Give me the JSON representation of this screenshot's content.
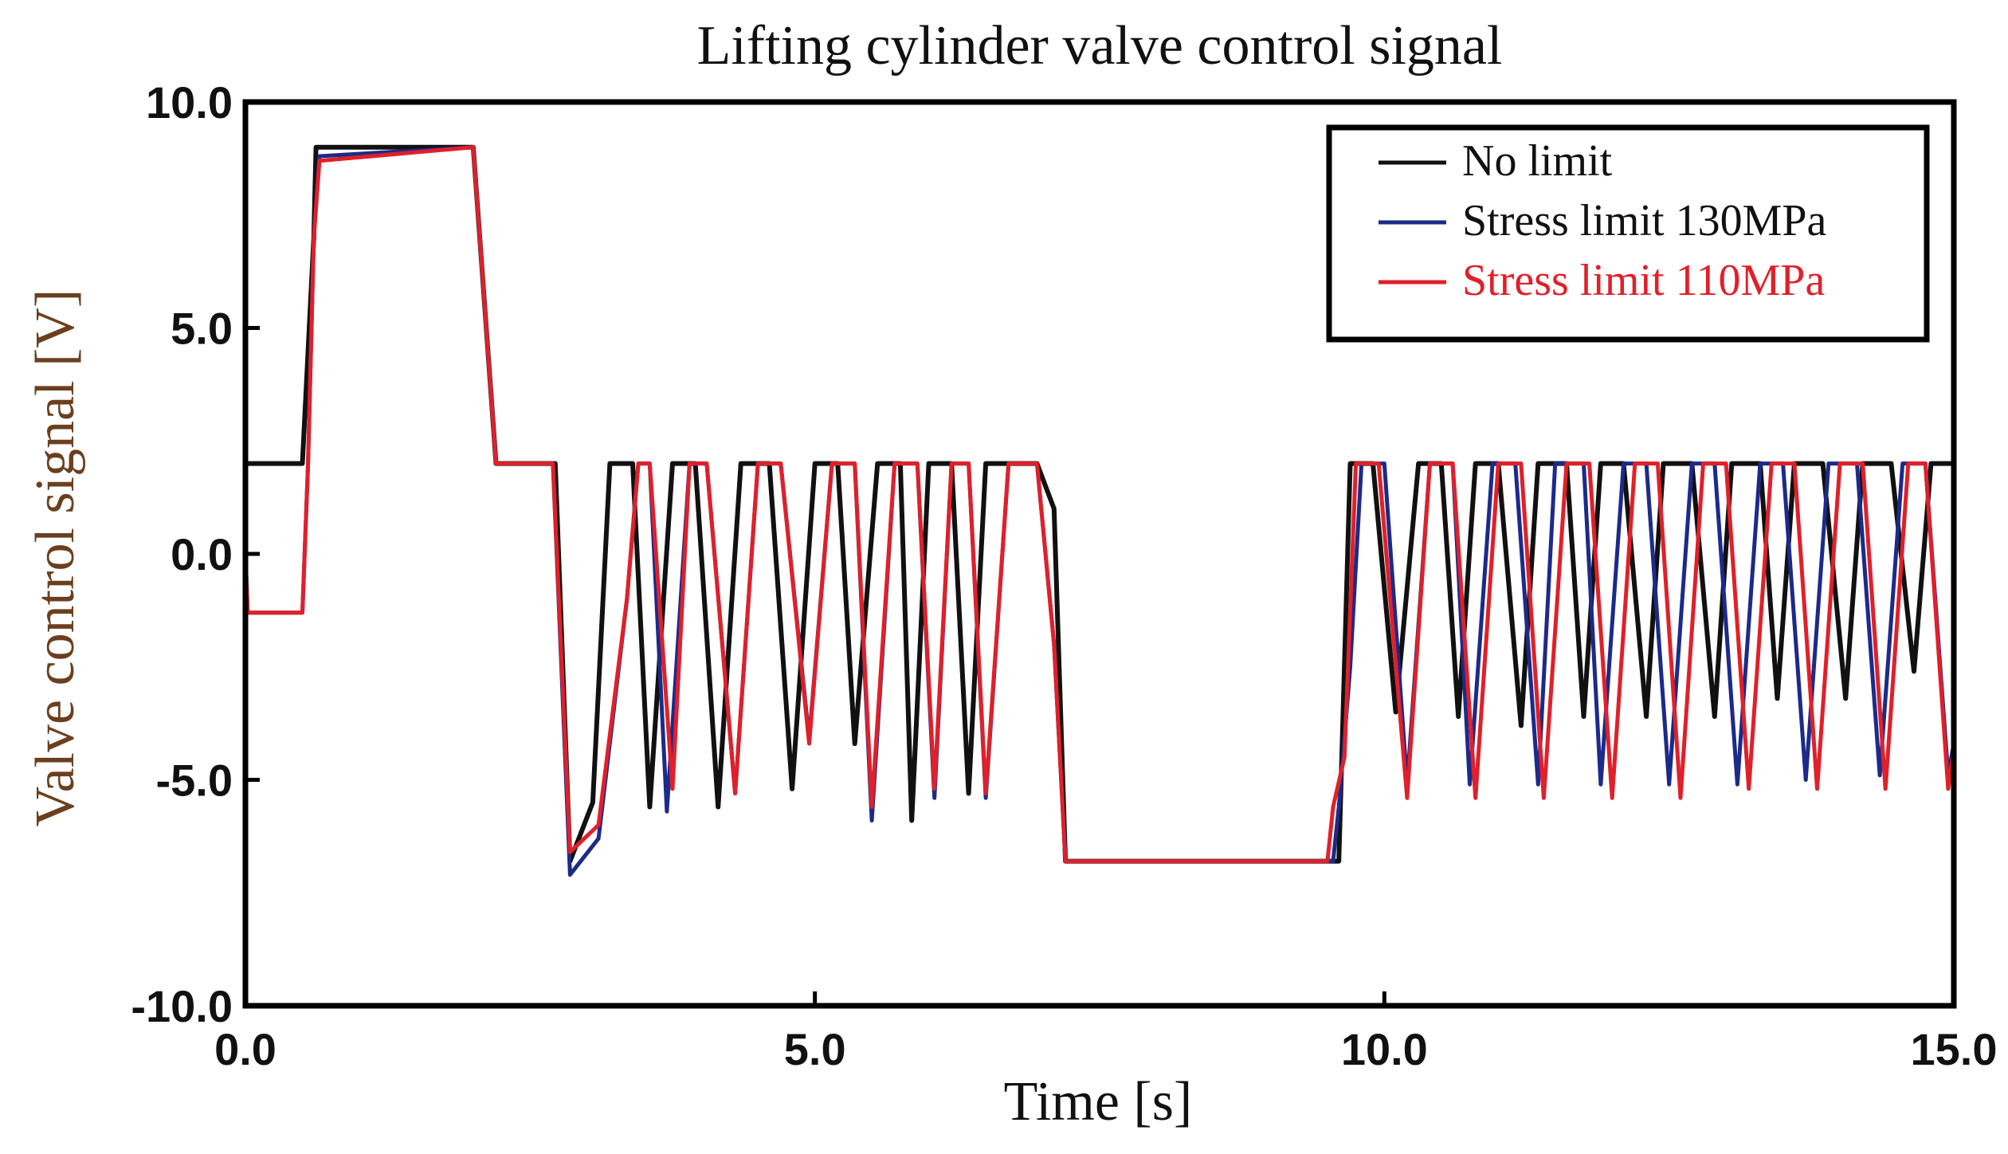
{
  "chart_data": {
    "type": "line",
    "title": "Lifting cylinder valve control signal",
    "xlabel": "Time [s]",
    "ylabel": "Valve control signal [V]",
    "xlim": [
      0,
      15
    ],
    "ylim": [
      -10,
      10
    ],
    "x_ticks": [
      "0.0",
      "5.0",
      "10.0",
      "15.0"
    ],
    "y_ticks": [
      "10.0",
      "5.0",
      "0.0",
      "-5.0",
      "-10.0"
    ],
    "x_tick_values": [
      0,
      5,
      10,
      15
    ],
    "y_tick_values": [
      10,
      5,
      0,
      -5,
      -10
    ],
    "grid": false,
    "legend_position": "top-right",
    "series": [
      {
        "name": "No limit",
        "color": "#111111",
        "points": [
          [
            0,
            2
          ],
          [
            0.45,
            2
          ],
          [
            0.5,
            2
          ],
          [
            0.6,
            7
          ],
          [
            0.62,
            9
          ],
          [
            2,
            9
          ],
          [
            2.2,
            2
          ],
          [
            2.7,
            2
          ],
          [
            2.72,
            2
          ],
          [
            2.85,
            -6.8
          ],
          [
            3.05,
            -5.5
          ],
          [
            3.2,
            2
          ],
          [
            3.4,
            2
          ],
          [
            3.55,
            -5.6
          ],
          [
            3.75,
            2
          ],
          [
            3.95,
            2
          ],
          [
            4.15,
            -5.6
          ],
          [
            4.35,
            2
          ],
          [
            4.6,
            2
          ],
          [
            4.8,
            -5.2
          ],
          [
            5.0,
            2
          ],
          [
            5.2,
            2
          ],
          [
            5.35,
            -4.2
          ],
          [
            5.55,
            2
          ],
          [
            5.75,
            2
          ],
          [
            5.85,
            -5.9
          ],
          [
            6.0,
            2
          ],
          [
            6.2,
            2
          ],
          [
            6.35,
            -5.3
          ],
          [
            6.5,
            2
          ],
          [
            6.95,
            2
          ],
          [
            7.1,
            1
          ],
          [
            7.2,
            -6.8
          ],
          [
            9.6,
            -6.8
          ],
          [
            9.7,
            2
          ],
          [
            9.9,
            2
          ],
          [
            10.1,
            -3.5
          ],
          [
            10.3,
            2
          ],
          [
            10.5,
            2
          ],
          [
            10.65,
            -3.6
          ],
          [
            10.8,
            2
          ],
          [
            11.0,
            2
          ],
          [
            11.2,
            -3.8
          ],
          [
            11.35,
            2
          ],
          [
            11.6,
            2
          ],
          [
            11.75,
            -3.6
          ],
          [
            11.9,
            2
          ],
          [
            12.1,
            2
          ],
          [
            12.3,
            -3.6
          ],
          [
            12.45,
            2
          ],
          [
            12.7,
            2
          ],
          [
            12.9,
            -3.6
          ],
          [
            13.05,
            2
          ],
          [
            13.3,
            2
          ],
          [
            13.45,
            -3.2
          ],
          [
            13.6,
            2
          ],
          [
            13.85,
            2
          ],
          [
            14.05,
            -3.2
          ],
          [
            14.2,
            2
          ],
          [
            14.45,
            2
          ],
          [
            14.65,
            -2.6
          ],
          [
            14.8,
            2
          ],
          [
            15,
            2
          ]
        ]
      },
      {
        "name": "Stress limit 130MPa",
        "color": "#1c2a8a",
        "points": [
          [
            0,
            0
          ],
          [
            0.02,
            -1.3
          ],
          [
            0.5,
            -1.3
          ],
          [
            0.55,
            2
          ],
          [
            0.6,
            7
          ],
          [
            0.65,
            8.8
          ],
          [
            2,
            9
          ],
          [
            2.2,
            2
          ],
          [
            2.7,
            2
          ],
          [
            2.85,
            -7.1
          ],
          [
            3.1,
            -6.3
          ],
          [
            3.35,
            -1
          ],
          [
            3.45,
            2
          ],
          [
            3.55,
            2
          ],
          [
            3.7,
            -5.7
          ],
          [
            3.9,
            2
          ],
          [
            4.05,
            2
          ],
          [
            4.3,
            -5.3
          ],
          [
            4.5,
            2
          ],
          [
            4.7,
            2
          ],
          [
            4.95,
            -4.1
          ],
          [
            5.15,
            2
          ],
          [
            5.35,
            2
          ],
          [
            5.5,
            -5.9
          ],
          [
            5.7,
            2
          ],
          [
            5.9,
            2
          ],
          [
            6.05,
            -5.4
          ],
          [
            6.2,
            2
          ],
          [
            6.35,
            2
          ],
          [
            6.5,
            -5.4
          ],
          [
            6.7,
            2
          ],
          [
            6.95,
            2
          ],
          [
            7.1,
            -2
          ],
          [
            7.2,
            -6.8
          ],
          [
            9.55,
            -6.8
          ],
          [
            9.6,
            -5.6
          ],
          [
            9.7,
            -2.5
          ],
          [
            9.8,
            2
          ],
          [
            10.0,
            2
          ],
          [
            10.2,
            -5.1
          ],
          [
            10.4,
            2
          ],
          [
            10.6,
            2
          ],
          [
            10.75,
            -5.1
          ],
          [
            10.95,
            2
          ],
          [
            11.15,
            2
          ],
          [
            11.35,
            -5.1
          ],
          [
            11.5,
            2
          ],
          [
            11.75,
            2
          ],
          [
            11.9,
            -5.1
          ],
          [
            12.1,
            2
          ],
          [
            12.3,
            2
          ],
          [
            12.5,
            -5.1
          ],
          [
            12.7,
            2
          ],
          [
            12.9,
            2
          ],
          [
            13.1,
            -5.1
          ],
          [
            13.3,
            2
          ],
          [
            13.5,
            2
          ],
          [
            13.7,
            -5.0
          ],
          [
            13.9,
            2
          ],
          [
            14.15,
            2
          ],
          [
            14.35,
            -4.9
          ],
          [
            14.55,
            2
          ],
          [
            14.75,
            2
          ],
          [
            14.95,
            -4.9
          ],
          [
            15,
            -4.2
          ]
        ]
      },
      {
        "name": "Stress limit 110MPa",
        "color": "#e0202a",
        "points": [
          [
            0,
            0
          ],
          [
            0.02,
            -1.3
          ],
          [
            0.5,
            -1.3
          ],
          [
            0.55,
            2
          ],
          [
            0.6,
            7
          ],
          [
            0.65,
            8.7
          ],
          [
            2,
            9
          ],
          [
            2.2,
            2
          ],
          [
            2.7,
            2
          ],
          [
            2.85,
            -6.6
          ],
          [
            3.1,
            -6.0
          ],
          [
            3.35,
            -1
          ],
          [
            3.45,
            2
          ],
          [
            3.55,
            2
          ],
          [
            3.75,
            -5.2
          ],
          [
            3.9,
            2
          ],
          [
            4.05,
            2
          ],
          [
            4.3,
            -5.3
          ],
          [
            4.5,
            2
          ],
          [
            4.7,
            2
          ],
          [
            4.95,
            -4.2
          ],
          [
            5.15,
            2
          ],
          [
            5.35,
            2
          ],
          [
            5.5,
            -5.6
          ],
          [
            5.7,
            2
          ],
          [
            5.9,
            2
          ],
          [
            6.05,
            -5.2
          ],
          [
            6.2,
            2
          ],
          [
            6.35,
            2
          ],
          [
            6.5,
            -5.3
          ],
          [
            6.7,
            2
          ],
          [
            6.95,
            2
          ],
          [
            7.1,
            -2
          ],
          [
            7.2,
            -6.8
          ],
          [
            9.5,
            -6.8
          ],
          [
            9.55,
            -5.6
          ],
          [
            9.65,
            -4.5
          ],
          [
            9.75,
            2
          ],
          [
            9.95,
            2
          ],
          [
            10.2,
            -5.4
          ],
          [
            10.4,
            2
          ],
          [
            10.6,
            2
          ],
          [
            10.8,
            -5.4
          ],
          [
            11.0,
            2
          ],
          [
            11.2,
            2
          ],
          [
            11.4,
            -5.4
          ],
          [
            11.6,
            2
          ],
          [
            11.8,
            2
          ],
          [
            12.0,
            -5.4
          ],
          [
            12.2,
            2
          ],
          [
            12.4,
            2
          ],
          [
            12.6,
            -5.4
          ],
          [
            12.8,
            2
          ],
          [
            13.0,
            2
          ],
          [
            13.2,
            -5.2
          ],
          [
            13.4,
            2
          ],
          [
            13.6,
            2
          ],
          [
            13.8,
            -5.2
          ],
          [
            14.0,
            2
          ],
          [
            14.2,
            2
          ],
          [
            14.4,
            -5.2
          ],
          [
            14.6,
            2
          ],
          [
            14.75,
            2
          ],
          [
            14.95,
            -5.2
          ],
          [
            15,
            -4.3
          ]
        ]
      }
    ]
  }
}
